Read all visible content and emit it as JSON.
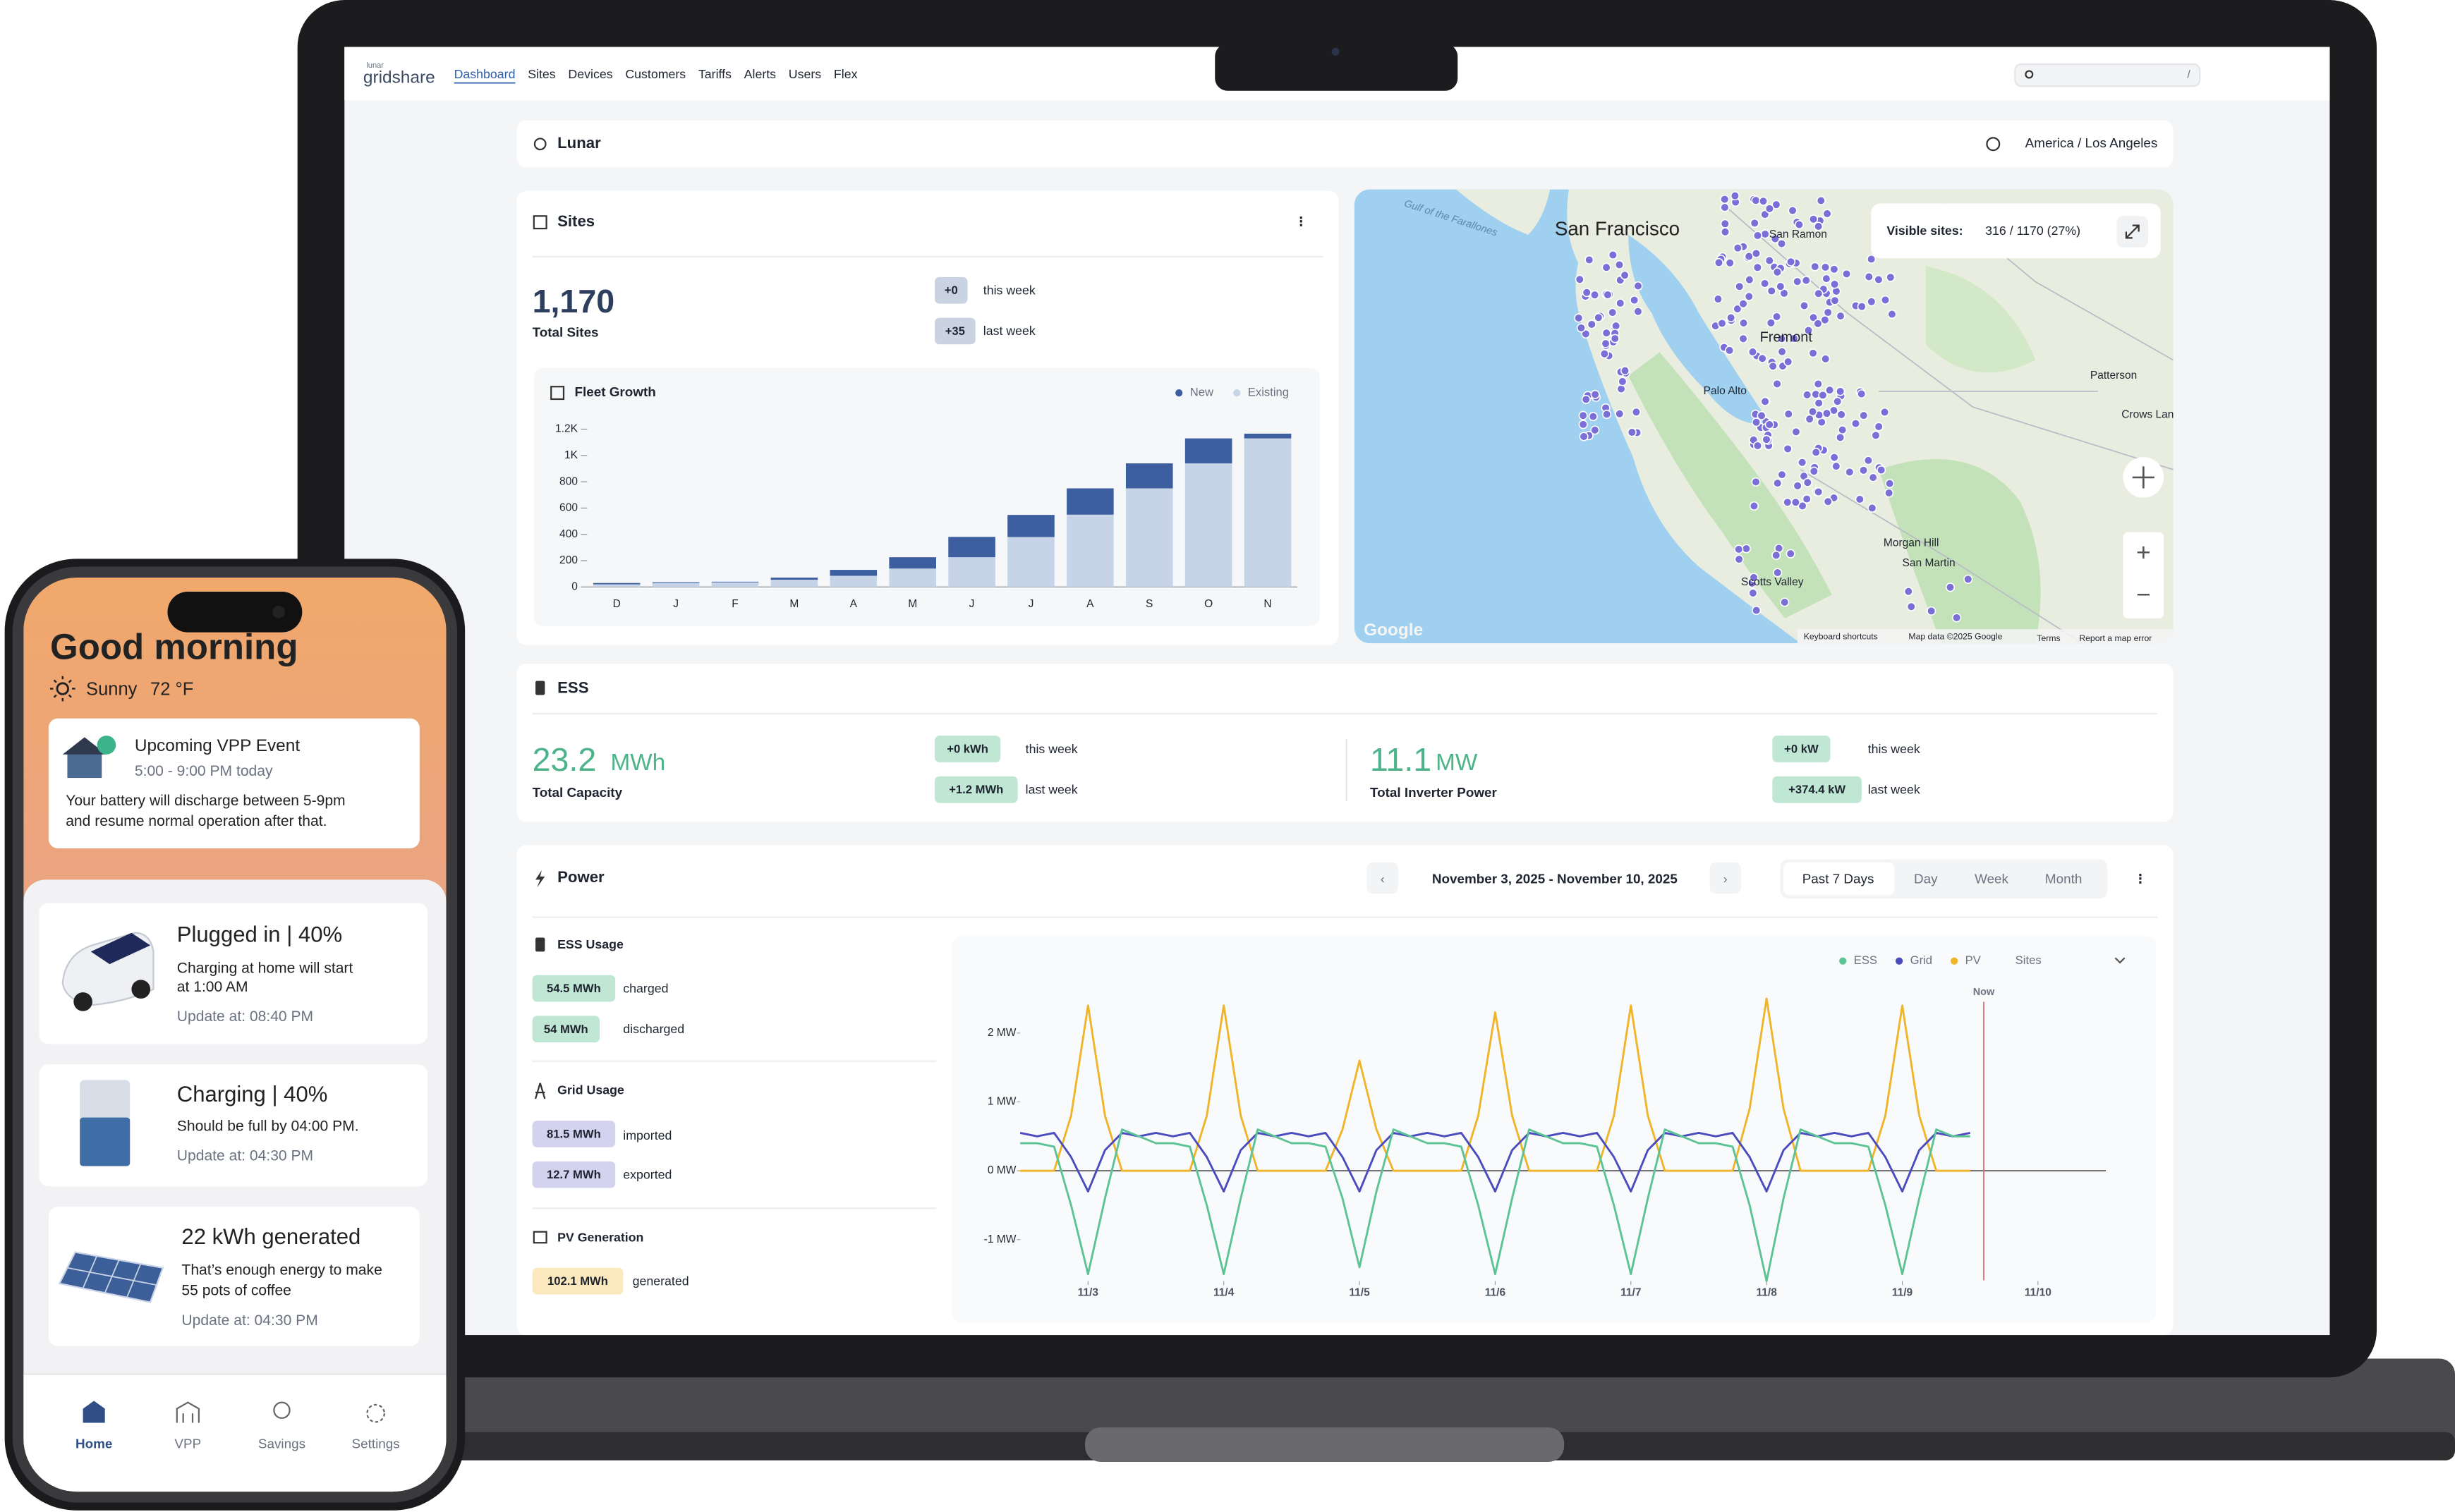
{
  "nav": {
    "brand_small": "lunar",
    "brand": "gridshare",
    "links": [
      "Dashboard",
      "Sites",
      "Devices",
      "Customers",
      "Tariffs",
      "Alerts",
      "Users",
      "Flex"
    ],
    "search_hint": "/"
  },
  "header": {
    "org": "Lunar",
    "timezone": "America / Los Angeles"
  },
  "sites": {
    "title": "Sites",
    "total": "1,170",
    "total_label": "Total Sites",
    "changes": [
      {
        "badge": "+0",
        "label": "this week"
      },
      {
        "badge": "+35",
        "label": "last week"
      }
    ]
  },
  "map": {
    "visible_label": "Visible sites:",
    "visible_value": "316 / 1170 (27%)",
    "places": [
      "Gulf of the Farallones",
      "San Francisco",
      "San Ramon",
      "Fremont",
      "Palo Alto",
      "Patterson",
      "Crows Landing",
      "Morgan Hill",
      "San Martin",
      "Scotts Valley"
    ],
    "attribution": [
      "Google",
      "Keyboard shortcuts",
      "Map data ©2025 Google",
      "Terms",
      "Report a map error"
    ]
  },
  "ess": {
    "title": "ESS",
    "capacity": {
      "value": "23.2",
      "unit": "MWh",
      "label": "Total Capacity",
      "changes": [
        {
          "badge": "+0 kWh",
          "label": "this week"
        },
        {
          "badge": "+1.2 MWh",
          "label": "last week"
        }
      ]
    },
    "inverter": {
      "value": "11.1",
      "unit": "MW",
      "label": "Total Inverter Power",
      "changes": [
        {
          "badge": "+0 kW",
          "label": "this week"
        },
        {
          "badge": "+374.4 kW",
          "label": "last week"
        }
      ]
    }
  },
  "power": {
    "title": "Power",
    "date_range": "November 3, 2025 - November 10, 2025",
    "ranges": [
      "Past 7 Days",
      "Day",
      "Week",
      "Month"
    ],
    "groups": [
      {
        "title": "ESS Usage",
        "rows": [
          {
            "badge": "54.5 MWh",
            "label": "charged"
          },
          {
            "badge": "54 MWh",
            "label": "discharged"
          }
        ]
      },
      {
        "title": "Grid Usage",
        "rows": [
          {
            "badge": "81.5 MWh",
            "label": "imported"
          },
          {
            "badge": "12.7 MWh",
            "label": "exported"
          }
        ]
      },
      {
        "title": "PV Generation",
        "rows": [
          {
            "badge": "102.1 MWh",
            "label": "generated"
          }
        ]
      }
    ]
  },
  "chart_data": [
    {
      "type": "bar",
      "stacked": true,
      "title": "Fleet Growth",
      "categories": [
        "D",
        "J",
        "F",
        "M",
        "A",
        "M",
        "J",
        "J",
        "A",
        "S",
        "O",
        "N"
      ],
      "series": [
        {
          "name": "New",
          "color": "#3d5f9f",
          "values": [
            10,
            6,
            5,
            16,
            45,
            86,
            155,
            168,
            200,
            190,
            190,
            36
          ]
        },
        {
          "name": "Existing",
          "color": "#c7d4e7",
          "values": [
            20,
            30,
            35,
            55,
            85,
            140,
            226,
            380,
            550,
            750,
            940,
            1130
          ]
        }
      ],
      "ylim": [
        0,
        1250
      ],
      "yticks": [
        0,
        200,
        400,
        600,
        800,
        {
          "value": 1000,
          "label": "1K"
        },
        {
          "value": 1200,
          "label": "1.2K"
        }
      ],
      "grid": false
    },
    {
      "type": "line",
      "filter": "Sites",
      "x": [
        -0.5,
        -0.375,
        -0.25,
        -0.125,
        0,
        0.125,
        0.25,
        0.375,
        0.5,
        0.625,
        0.75,
        0.875,
        1,
        1.125,
        1.25,
        1.375,
        1.5,
        1.625,
        1.75,
        1.875,
        2,
        2.125,
        2.25,
        2.375,
        2.5,
        2.625,
        2.75,
        2.875,
        3,
        3.125,
        3.25,
        3.375,
        3.5,
        3.625,
        3.75,
        3.875,
        4,
        4.125,
        4.25,
        4.375,
        4.5,
        4.625,
        4.75,
        4.875,
        5,
        5.125,
        5.25,
        5.375,
        5.5,
        5.625,
        5.75,
        5.875,
        6,
        6.125,
        6.25,
        6.375,
        6.5
      ],
      "series": [
        {
          "name": "ESS",
          "color": "#5cc394",
          "values": [
            0.4,
            0.4,
            0.35,
            -0.5,
            -1.5,
            -0.4,
            0.6,
            0.5,
            0.4,
            0.4,
            0.35,
            -0.5,
            -1.5,
            -0.4,
            0.6,
            0.5,
            0.4,
            0.4,
            0.35,
            -0.4,
            -1.4,
            -0.3,
            0.6,
            0.5,
            0.4,
            0.4,
            0.35,
            -0.5,
            -1.5,
            -0.4,
            0.6,
            0.5,
            0.4,
            0.4,
            0.35,
            -0.5,
            -1.5,
            -0.4,
            0.6,
            0.5,
            0.4,
            0.4,
            0.35,
            -0.5,
            -1.6,
            -0.4,
            0.6,
            0.5,
            0.4,
            0.4,
            0.35,
            -0.5,
            -1.5,
            -0.4,
            0.6,
            0.5,
            0.5
          ]
        },
        {
          "name": "Grid",
          "color": "#4a4cbd",
          "values": [
            0.55,
            0.5,
            0.55,
            0.2,
            -0.3,
            0.3,
            0.55,
            0.5,
            0.55,
            0.5,
            0.55,
            0.2,
            -0.3,
            0.3,
            0.55,
            0.5,
            0.55,
            0.5,
            0.55,
            0.2,
            -0.3,
            0.3,
            0.55,
            0.5,
            0.55,
            0.5,
            0.55,
            0.2,
            -0.3,
            0.3,
            0.55,
            0.5,
            0.55,
            0.5,
            0.55,
            0.2,
            -0.3,
            0.3,
            0.55,
            0.5,
            0.55,
            0.5,
            0.55,
            0.2,
            -0.3,
            0.3,
            0.55,
            0.5,
            0.55,
            0.5,
            0.55,
            0.2,
            -0.3,
            0.3,
            0.55,
            0.5,
            0.55
          ]
        },
        {
          "name": "PV",
          "color": "#f0b429",
          "values": [
            0,
            0,
            0,
            0.8,
            2.4,
            0.8,
            0,
            0,
            0,
            0,
            0,
            0.8,
            2.4,
            0.8,
            0,
            0,
            0,
            0,
            0,
            0.6,
            1.6,
            0.6,
            0,
            0,
            0,
            0,
            0,
            0.8,
            2.3,
            0.8,
            0,
            0,
            0,
            0,
            0,
            0.8,
            2.4,
            0.8,
            0,
            0,
            0,
            0,
            0,
            0.9,
            2.5,
            0.9,
            0,
            0,
            0,
            0,
            0,
            0.8,
            2.4,
            0.8,
            0,
            0,
            0
          ]
        }
      ],
      "xlim": [
        -0.5,
        7.5
      ],
      "xticks": [
        {
          "value": 0,
          "label": "11/3"
        },
        {
          "value": 1,
          "label": "11/4"
        },
        {
          "value": 2,
          "label": "11/5"
        },
        {
          "value": 3,
          "label": "11/6"
        },
        {
          "value": 4,
          "label": "11/7"
        },
        {
          "value": 5,
          "label": "11/8"
        },
        {
          "value": 6,
          "label": "11/9"
        },
        {
          "value": 7,
          "label": "11/10"
        }
      ],
      "ylim": [
        -1.6,
        2.6
      ],
      "yticks": [
        {
          "value": 2,
          "label": "2 MW"
        },
        {
          "value": 1,
          "label": "1 MW"
        },
        {
          "value": 0,
          "label": "0 MW"
        },
        {
          "value": -1,
          "label": "-1 MW"
        }
      ],
      "now": {
        "label": "Now",
        "x": 6.6
      },
      "grid": false
    }
  ],
  "phone": {
    "greeting": "Good morning",
    "weather": "Sunny",
    "temperature": "72 °F",
    "event": {
      "title": "Upcoming VPP Event",
      "time": "5:00 - 9:00 PM today",
      "body": [
        "Your battery will discharge between 5-9pm",
        "and resume normal operation after that."
      ]
    },
    "cards": [
      {
        "title": "Plugged in | 40%",
        "lines": [
          "Charging at home will start",
          "at 1:00 AM"
        ],
        "update": "Update at: 08:40 PM"
      },
      {
        "title": "Charging | 40%",
        "lines": [
          "Should be full by 04:00 PM."
        ],
        "update": "Update at: 04:30 PM"
      },
      {
        "title": "22 kWh generated",
        "lines": [
          "That’s enough energy to make",
          "55 pots of coffee"
        ],
        "update": "Update at: 04:30 PM"
      }
    ],
    "tabs": [
      "Home",
      "VPP",
      "Savings",
      "Settings"
    ]
  }
}
